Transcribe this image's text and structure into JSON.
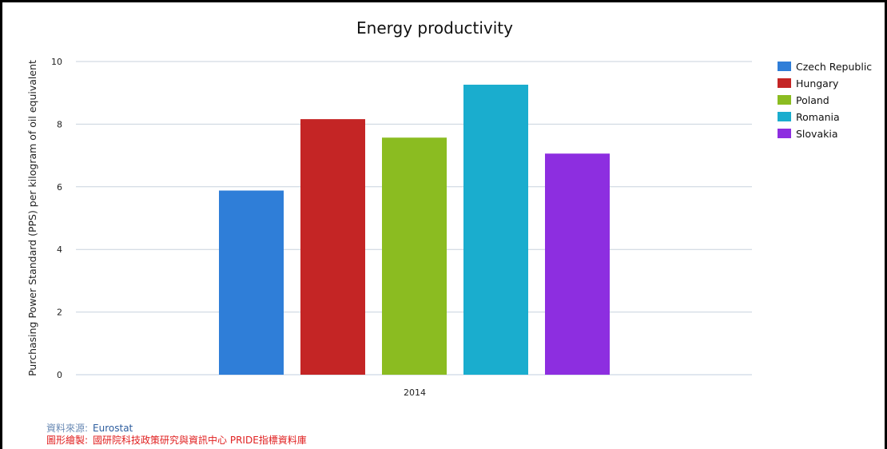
{
  "chart_data": {
    "type": "bar",
    "title": "Energy productivity",
    "ylabel": "Purchasing Power Standard (PPS) per kilogram of oil equivalent",
    "xlabel": "",
    "categories": [
      "2014"
    ],
    "ylim": [
      0,
      10
    ],
    "yticks": [
      "0",
      "2",
      "4",
      "6",
      "8",
      "10"
    ],
    "grid": true,
    "legend_position": "right",
    "series": [
      {
        "name": "Czech Republic",
        "values": [
          5.88
        ],
        "color": "#2f7ed8"
      },
      {
        "name": "Hungary",
        "values": [
          8.16
        ],
        "color": "#c42525"
      },
      {
        "name": "Poland",
        "values": [
          7.57
        ],
        "color": "#8bbc21"
      },
      {
        "name": "Romania",
        "values": [
          9.26
        ],
        "color": "#1aadce"
      },
      {
        "name": "Slovakia",
        "values": [
          7.06
        ],
        "color": "#8d2ee0"
      }
    ]
  },
  "credits": {
    "source_label": "資料來源:",
    "source_value": "Eurostat",
    "author_label": "圖形繪製:",
    "author_value": "國研院科技政策研究與資訊中心 PRIDE指標資料庫"
  }
}
